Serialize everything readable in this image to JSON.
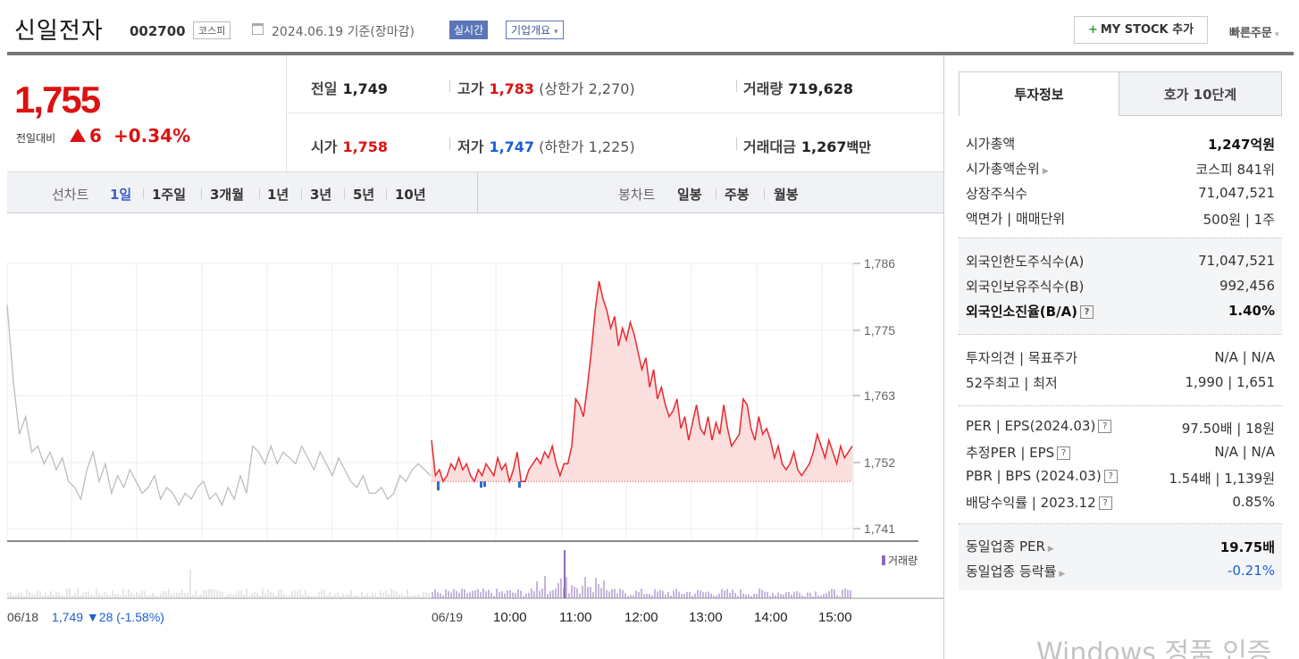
{
  "header": {
    "company": "신일전자",
    "code": "002700",
    "market": "코스피",
    "date": "2024.06.19 기준(장마감)",
    "realtime": "실시간",
    "overview": "기업개요",
    "mystock": "MY STOCK 추가",
    "quick_order": "빠른주문"
  },
  "price": {
    "current": "1,755",
    "change_label": "전일대비",
    "change": "6",
    "change_pct": "+0.34%"
  },
  "stats": {
    "prev_label": "전일",
    "prev": "1,749",
    "high_label": "고가",
    "high": "1,783",
    "upper_limit": "(상한가 2,270)",
    "volume_label": "거래량",
    "volume": "719,628",
    "open_label": "시가",
    "open": "1,758",
    "low_label": "저가",
    "low": "1,747",
    "lower_limit": "(하한가 1,225)",
    "amount_label": "거래대금",
    "amount": "1,267",
    "amount_unit": "백만"
  },
  "chart_tabs": {
    "line_label": "선차트",
    "line_periods": [
      "1일",
      "1주일",
      "3개월",
      "1년",
      "3년",
      "5년",
      "10년"
    ],
    "candle_label": "봉차트",
    "candle_periods": [
      "일봉",
      "주봉",
      "월봉"
    ]
  },
  "chart_data": {
    "type": "line",
    "y_ticks": [
      "1,786",
      "1,775",
      "1,763",
      "1,752",
      "1,741"
    ],
    "ylim": [
      1741,
      1786
    ],
    "x_ticks": [
      "06/18",
      "06/19",
      "10:00",
      "11:00",
      "12:00",
      "13:00",
      "14:00",
      "15:00"
    ],
    "prev_day_note": "1,749 ▼28 (-1.58%)",
    "volume_legend": "거래량",
    "reference_price": 1749,
    "prev_day_series": [
      1779,
      1766,
      1757,
      1760,
      1754,
      1755,
      1752,
      1754,
      1751,
      1753,
      1749,
      1748,
      1746,
      1751,
      1754,
      1749,
      1752,
      1747,
      1750,
      1748,
      1751,
      1749,
      1747,
      1748,
      1750,
      1746,
      1748,
      1747,
      1745,
      1747,
      1746,
      1748,
      1749,
      1746,
      1747,
      1745,
      1748,
      1746,
      1750,
      1747,
      1755,
      1754,
      1752,
      1755,
      1752,
      1754,
      1753,
      1752,
      1755,
      1753,
      1751,
      1754,
      1752,
      1750,
      1753,
      1751,
      1749,
      1748,
      1750,
      1747,
      1747,
      1748,
      1746,
      1747,
      1750,
      1749,
      1751,
      1752,
      1751,
      1750
    ],
    "today_series": [
      1756,
      1750,
      1751,
      1749,
      1750,
      1752,
      1751,
      1753,
      1751,
      1752,
      1750,
      1749,
      1751,
      1750,
      1752,
      1751,
      1750,
      1753,
      1751,
      1752,
      1749,
      1751,
      1754,
      1749,
      1749,
      1751,
      1752,
      1753,
      1752,
      1754,
      1753,
      1755,
      1752,
      1750,
      1752,
      1752,
      1755,
      1763,
      1762,
      1760,
      1765,
      1771,
      1778,
      1783,
      1780,
      1778,
      1775,
      1777,
      1772,
      1775,
      1773,
      1776,
      1774,
      1771,
      1768,
      1770,
      1765,
      1768,
      1763,
      1765,
      1762,
      1760,
      1761,
      1763,
      1758,
      1760,
      1756,
      1759,
      1762,
      1758,
      1757,
      1760,
      1756,
      1759,
      1757,
      1762,
      1758,
      1755,
      1756,
      1757,
      1763,
      1762,
      1758,
      1756,
      1760,
      1757,
      1758,
      1756,
      1753,
      1755,
      1752,
      1751,
      1752,
      1754,
      1751,
      1750,
      1751,
      1752,
      1754,
      1757,
      1755,
      1753,
      1756,
      1754,
      1752,
      1755,
      1753,
      1754,
      1755
    ]
  },
  "info_tabs": {
    "invest": "투자정보",
    "quote": "호가 10단계"
  },
  "info": {
    "sec1": [
      {
        "k": "시가총액",
        "v": "1,247억원"
      },
      {
        "k": "시가총액순위",
        "v": "코스피 841위"
      },
      {
        "k": "상장주식수",
        "v": "71,047,521"
      },
      {
        "k": "액면가 | 매매단위",
        "v": "500원 | 1주"
      }
    ],
    "sec2": [
      {
        "k": "외국인한도주식수(A)",
        "v": "71,047,521"
      },
      {
        "k": "외국인보유주식수(B)",
        "v": "992,456"
      },
      {
        "k": "외국인소진율(B/A)",
        "v": "1.40%"
      }
    ],
    "sec3": [
      {
        "k": "투자의견 | 목표주가",
        "v": "N/A | N/A"
      },
      {
        "k": "52주최고 | 최저",
        "v": "1,990 | 1,651"
      }
    ],
    "sec4": [
      {
        "k": "PER | EPS(2024.03)",
        "v": "97.50배 | 18원"
      },
      {
        "k": "추정PER | EPS",
        "v": "N/A | N/A"
      },
      {
        "k": "PBR | BPS (2024.03)",
        "v": "1.54배 | 1,139원"
      },
      {
        "k": "배당수익률 | 2023.12",
        "v": "0.85%"
      }
    ],
    "sec5": [
      {
        "k": "동일업종 PER",
        "v": "19.75배"
      },
      {
        "k": "동일업종 등락률",
        "v": "-0.21%"
      }
    ]
  },
  "watermark": "Windows 정품 인증"
}
